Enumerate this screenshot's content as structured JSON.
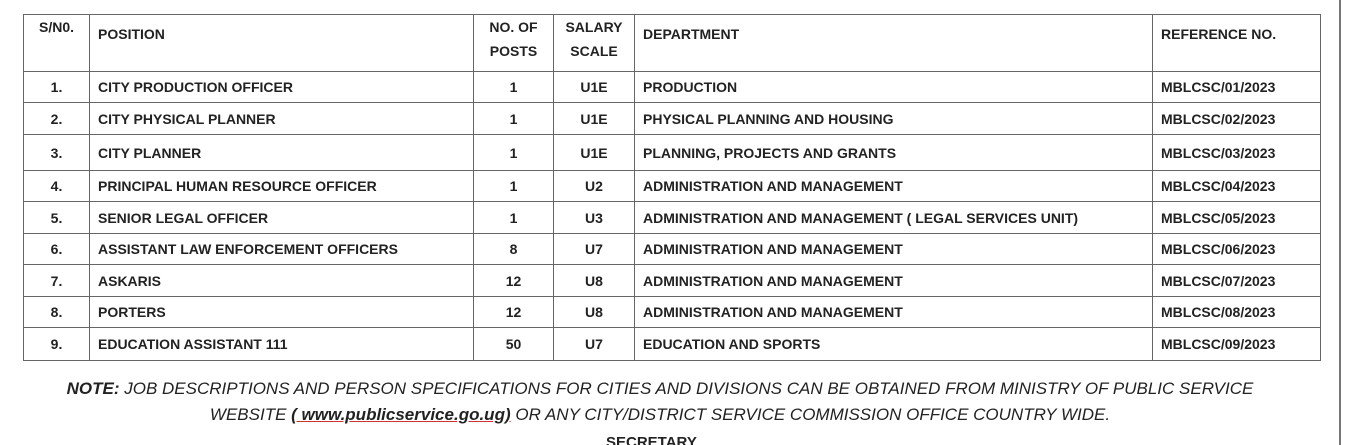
{
  "table": {
    "header": [
      "S/N0.",
      "POSITION",
      "NO. OF POSTS",
      "SALARY SCALE",
      "DEPARTMENT",
      "REFERENCE NO."
    ],
    "rows": [
      [
        "1.",
        "CITY PRODUCTION OFFICER",
        "1",
        "U1E",
        "PRODUCTION",
        "MBLCSC/01/2023"
      ],
      [
        "2.",
        "CITY PHYSICAL PLANNER",
        "1",
        "U1E",
        "PHYSICAL PLANNING AND HOUSING",
        "MBLCSC/02/2023"
      ],
      [
        "3.",
        "CITY PLANNER",
        "1",
        "U1E",
        "PLANNING, PROJECTS AND GRANTS",
        "MBLCSC/03/2023"
      ],
      [
        "4.",
        "PRINCIPAL HUMAN RESOURCE OFFICER",
        "1",
        "U2",
        "ADMINISTRATION AND MANAGEMENT",
        "MBLCSC/04/2023"
      ],
      [
        "5.",
        "SENIOR LEGAL OFFICER",
        "1",
        "U3",
        "ADMINISTRATION AND MANAGEMENT ( LEGAL SERVICES UNIT)",
        "MBLCSC/05/2023"
      ],
      [
        "6.",
        "ASSISTANT LAW ENFORCEMENT OFFICERS",
        "8",
        "U7",
        "ADMINISTRATION AND MANAGEMENT",
        "MBLCSC/06/2023"
      ],
      [
        "7.",
        "ASKARIS",
        "12",
        "U8",
        "ADMINISTRATION AND MANAGEMENT",
        "MBLCSC/07/2023"
      ],
      [
        "8.",
        "PORTERS",
        "12",
        "U8",
        "ADMINISTRATION AND MANAGEMENT",
        "MBLCSC/08/2023"
      ],
      [
        "9.",
        "EDUCATION ASSISTANT 111",
        "50",
        "U7",
        "EDUCATION AND SPORTS",
        "MBLCSC/09/2023"
      ]
    ]
  },
  "note": {
    "label": "NOTE:",
    "line1": "JOB DESCRIPTIONS AND PERSON SPECIFICATIONS FOR CITIES AND DIVISIONS CAN BE OBTAINED FROM MINISTRY OF PUBLIC SERVICE",
    "line2_start": "WEBSITE",
    "link": "( www.publicservice.go.ug)",
    "line2_end": "OR ANY CITY/DISTRICT SERVICE COMMISSION OFFICE COUNTRY WIDE."
  },
  "footer": "SECRETARY"
}
